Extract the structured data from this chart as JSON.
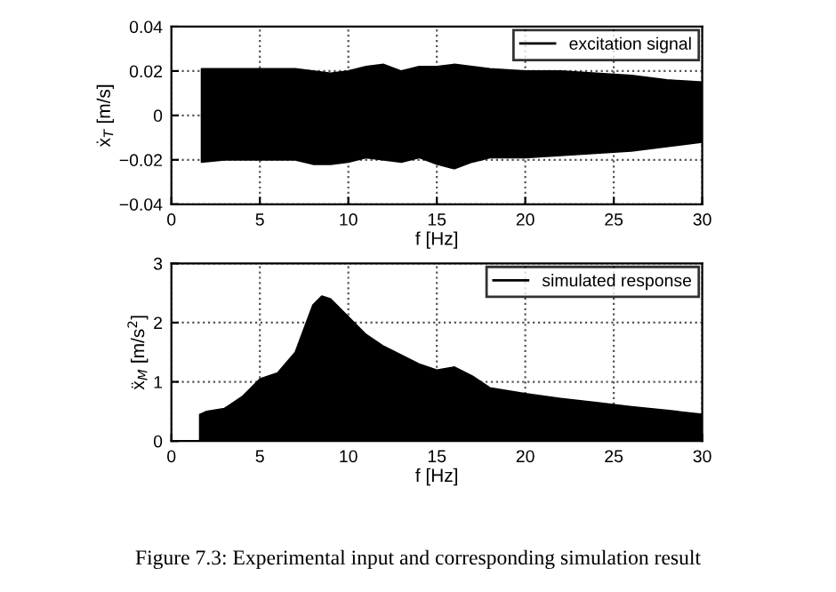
{
  "chart_data": [
    {
      "type": "area",
      "xlabel": "f [Hz]",
      "ylabel": "ẋ$_{T}$ [m/s]",
      "x": [
        1.7,
        3,
        5,
        7,
        8,
        9,
        10,
        11,
        12,
        13,
        14,
        15,
        16,
        17,
        18,
        20,
        22,
        24,
        26,
        28,
        30
      ],
      "series": [
        {
          "name": "excitation signal",
          "color": "#000000",
          "values": [
            0.021,
            0.021,
            0.021,
            0.021,
            0.02,
            0.019,
            0.02,
            0.022,
            0.023,
            0.02,
            0.022,
            0.022,
            0.023,
            0.022,
            0.021,
            0.02,
            0.02,
            0.019,
            0.018,
            0.016,
            0.015
          ]
        },
        {
          "color": "#000000",
          "values": [
            -0.021,
            -0.02,
            -0.02,
            -0.02,
            -0.022,
            -0.022,
            -0.021,
            -0.019,
            -0.02,
            -0.021,
            -0.019,
            -0.022,
            -0.024,
            -0.021,
            -0.019,
            -0.019,
            -0.018,
            -0.017,
            -0.016,
            -0.014,
            -0.012
          ]
        }
      ],
      "xlim": [
        0,
        30
      ],
      "xticks": [
        0,
        5,
        10,
        15,
        20,
        25,
        30
      ],
      "ylim": [
        -0.04,
        0.04
      ],
      "yticks": [
        {
          "value": -0.04,
          "label": "−0.04"
        },
        {
          "value": -0.02,
          "label": "−0.02"
        },
        0,
        0.02,
        0.04
      ],
      "grid": true,
      "legend": "top right"
    },
    {
      "type": "area",
      "xlabel": "f [Hz]",
      "ylabel": "ẍ$_{M}$ [m/s$^{2}$]",
      "x": [
        1.6,
        2,
        3,
        4,
        5,
        6,
        7,
        7.5,
        8,
        8.5,
        9,
        10,
        11,
        12,
        13,
        14,
        15,
        16,
        17,
        18,
        20,
        22,
        24,
        26,
        28,
        30
      ],
      "series": [
        {
          "name": "simulated response",
          "color": "#000000",
          "values": [
            0.45,
            0.5,
            0.55,
            0.75,
            1.05,
            1.15,
            1.5,
            1.9,
            2.3,
            2.45,
            2.4,
            2.1,
            1.8,
            1.6,
            1.45,
            1.3,
            1.2,
            1.25,
            1.1,
            0.9,
            0.8,
            0.72,
            0.65,
            0.58,
            0.52,
            0.45
          ]
        }
      ],
      "xlim": [
        0,
        30
      ],
      "xticks": [
        0,
        5,
        10,
        15,
        20,
        25,
        30
      ],
      "ylim": [
        0,
        3
      ],
      "yticks": [
        0,
        1,
        2,
        3
      ],
      "grid": true,
      "legend": "top right",
      "annotations": [
        "Figure 7.3: Experimental input and corresponding simulation result"
      ]
    }
  ]
}
